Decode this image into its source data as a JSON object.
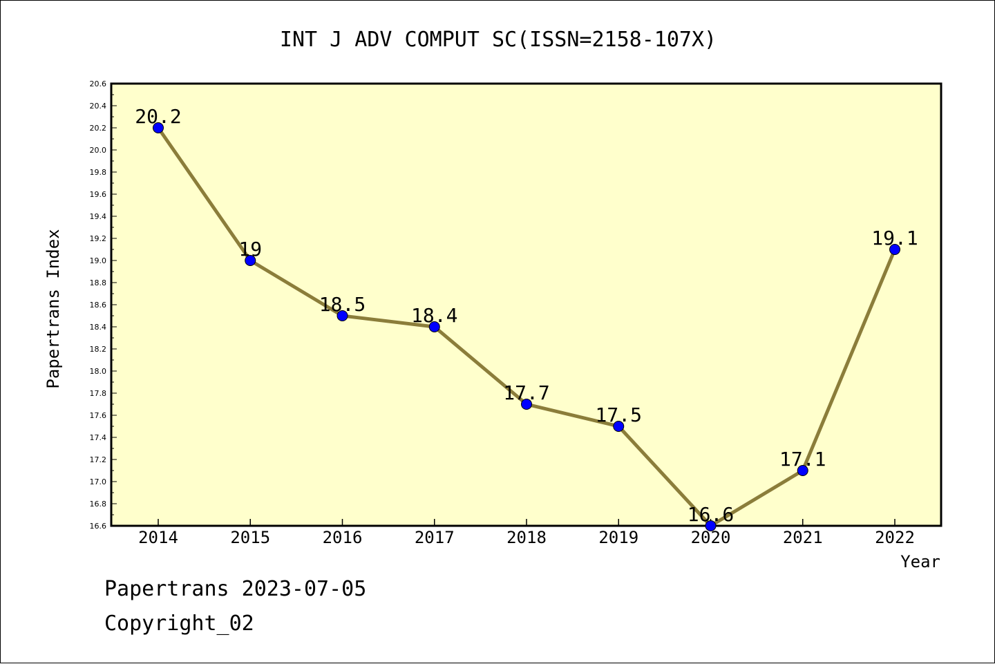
{
  "chart_data": {
    "type": "line",
    "title": "INT J ADV COMPUT SC(ISSN=2158-107X)",
    "xlabel": "Year",
    "ylabel": "Papertrans Index",
    "categories": [
      "2014",
      "2015",
      "2016",
      "2017",
      "2018",
      "2019",
      "2020",
      "2021",
      "2022"
    ],
    "series": [
      {
        "values": [
          20.2,
          19.0,
          18.5,
          18.4,
          17.7,
          17.5,
          16.6,
          17.1,
          19.1
        ],
        "data_labels": [
          "20.2",
          "19",
          "18.5",
          "18.4",
          "17.7",
          "17.5",
          "16.6",
          "17.1",
          "19.1"
        ]
      }
    ],
    "ylim": [
      16.6,
      20.6
    ],
    "yticks": [
      "16.6",
      "16.8",
      "17.0",
      "17.2",
      "17.4",
      "17.6",
      "17.8",
      "18.0",
      "18.2",
      "18.4",
      "18.6",
      "18.8",
      "19.0",
      "19.2",
      "19.4",
      "19.6",
      "19.8",
      "20.0",
      "20.2",
      "20.4",
      "20.6"
    ],
    "grid": false,
    "colors": {
      "plot_background": "#ffffcc",
      "line": "#8b7d3a",
      "marker": "#0000ff"
    }
  },
  "footer": {
    "line1": "Papertrans 2023-07-05",
    "line2": "Copyright_02"
  }
}
